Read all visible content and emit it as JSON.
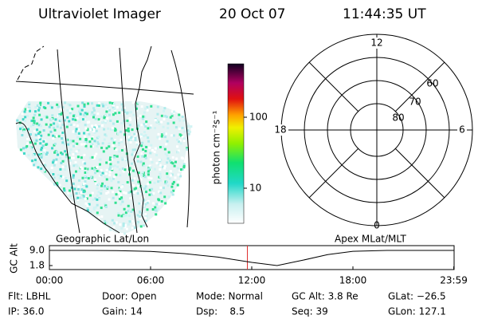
{
  "header": {
    "title": "Ultraviolet Imager",
    "date": "20 Oct 07",
    "time": "11:44:35 UT"
  },
  "colorbar": {
    "label": "photon cm⁻²s⁻¹",
    "ticks": [
      "100",
      "10"
    ]
  },
  "polar": {
    "labels": {
      "top": "12",
      "bottom": "0",
      "left": "18",
      "right": "6"
    },
    "rings": [
      "60",
      "70",
      "80"
    ]
  },
  "frames": {
    "left": "Geographic Lat/Lon",
    "right": "Apex MLat/MLT"
  },
  "altitude": {
    "y_label": "GC Alt",
    "yticks": [
      {
        "value": 9,
        "label": "9.0"
      },
      {
        "value": 1.8,
        "label": "1.8"
      }
    ],
    "xticks": [
      {
        "value": 0,
        "label": "00:00"
      },
      {
        "value": 6,
        "label": "06:00"
      },
      {
        "value": 12,
        "label": "12:00"
      },
      {
        "value": 18,
        "label": "18:00"
      },
      {
        "value": 23.98,
        "label": "23:59"
      }
    ],
    "hours": [
      0,
      2,
      4,
      6,
      8,
      10,
      12,
      13.5,
      15,
      16.5,
      18,
      20,
      23.98
    ],
    "values": [
      9.0,
      9.0,
      8.9,
      8.5,
      7.5,
      5.8,
      3.3,
      1.8,
      4.3,
      7.0,
      8.6,
      9.0,
      9.0
    ],
    "marker_hour": 11.74
  },
  "info": {
    "rows": [
      [
        "Flt: LBHL",
        "Door: Open",
        "Mode: Normal",
        "GC Alt: 3.8 Re",
        "GLat: −26.5"
      ],
      [
        "IP: 36.0",
        "Gain: 14",
        "Dsp:    8.5",
        "Seq: 39",
        "GLon: 127.1"
      ]
    ]
  }
}
